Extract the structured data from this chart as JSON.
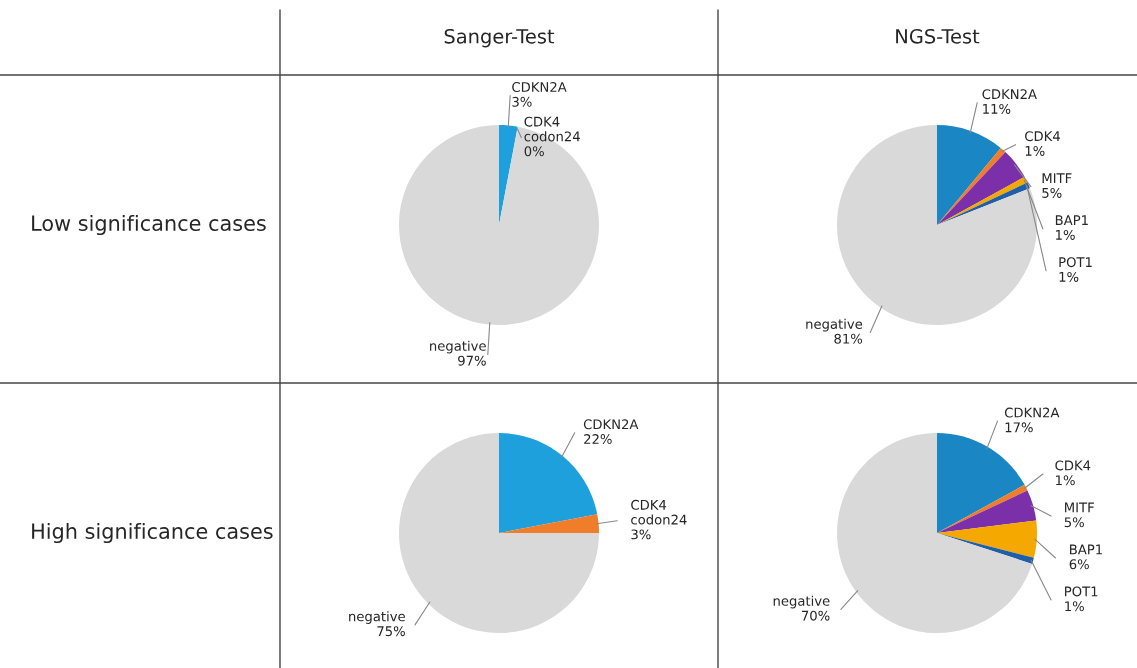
{
  "chart_data": [
    {
      "type": "pie",
      "title": "Sanger-Test",
      "annotations": [
        "Low significance cases"
      ],
      "categories": [
        "CDKN2A",
        "CDK4 codon24",
        "negative"
      ],
      "values": [
        3,
        0,
        97
      ],
      "value_labels": [
        "3%",
        "0%",
        "97%"
      ],
      "colors": [
        "#1ea0dc",
        "#f07d2a",
        "#d9d9d9"
      ]
    },
    {
      "type": "pie",
      "title": "NGS-Test",
      "categories": [
        "CDKN2A",
        "CDK4",
        "MITF",
        "BAP1",
        "POT1",
        "negative"
      ],
      "values": [
        11,
        1,
        5,
        1,
        1,
        81
      ],
      "value_labels": [
        "11%",
        "1%",
        "5%",
        "1%",
        "1%",
        "81%"
      ],
      "colors": [
        "#1a86c4",
        "#f07d2a",
        "#7b2fa8",
        "#f5a800",
        "#1f5faa",
        "#d9d9d9"
      ]
    },
    {
      "type": "pie",
      "annotations": [
        "High significance cases"
      ],
      "categories": [
        "CDKN2A",
        "CDK4 codon24",
        "negative"
      ],
      "values": [
        22,
        3,
        75
      ],
      "value_labels": [
        "22%",
        "3%",
        "75%"
      ],
      "colors": [
        "#1ea0dc",
        "#f07d2a",
        "#d9d9d9"
      ]
    },
    {
      "type": "pie",
      "categories": [
        "CDKN2A",
        "CDK4",
        "MITF",
        "BAP1",
        "POT1",
        "negative"
      ],
      "values": [
        17,
        1,
        5,
        6,
        1,
        70
      ],
      "value_labels": [
        "17%",
        "1%",
        "5%",
        "6%",
        "1%",
        "70%"
      ],
      "colors": [
        "#1a86c4",
        "#f07d2a",
        "#7b2fa8",
        "#f5a800",
        "#1f5faa",
        "#d9d9d9"
      ]
    }
  ]
}
